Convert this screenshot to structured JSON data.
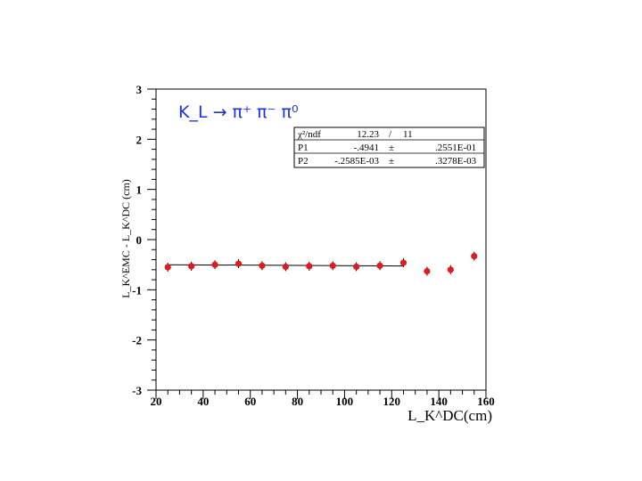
{
  "chart_data": {
    "type": "scatter",
    "xlabel": "L_K^DC(cm)",
    "ylabel": "L_K^EMC - L_K^DC (cm)",
    "xlim": [
      20,
      160
    ],
    "ylim": [
      -3,
      3
    ],
    "xticks": [
      "20",
      "40",
      "60",
      "80",
      "100",
      "120",
      "140",
      "160"
    ],
    "yticks": [
      "-3",
      "-2",
      "-1",
      "0",
      "1",
      "2",
      "3"
    ],
    "annotation": "K_L → π⁺ π⁻ π⁰",
    "series": [
      {
        "x": [
          25,
          35,
          45,
          55,
          65,
          75,
          85,
          95,
          105,
          115,
          125,
          135,
          145,
          155
        ],
        "y": [
          -0.55,
          -0.53,
          -0.5,
          -0.48,
          -0.52,
          -0.54,
          -0.53,
          -0.52,
          -0.54,
          -0.52,
          -0.46,
          -0.63,
          -0.6,
          -0.33
        ],
        "color": "#e01b1b"
      }
    ],
    "fit": {
      "x_range": [
        25,
        125
      ],
      "p1": -0.4941,
      "p2": -0.0002585,
      "rows": [
        {
          "name": "χ²/ndf",
          "value": "12.23",
          "sep": "/",
          "err": "11"
        },
        {
          "name": "P1",
          "value": "-.4941",
          "sep": "±",
          "err": ".2551E-01"
        },
        {
          "name": "P2",
          "value": "-.2585E-03",
          "sep": "±",
          "err": ".3278E-03"
        }
      ]
    }
  }
}
